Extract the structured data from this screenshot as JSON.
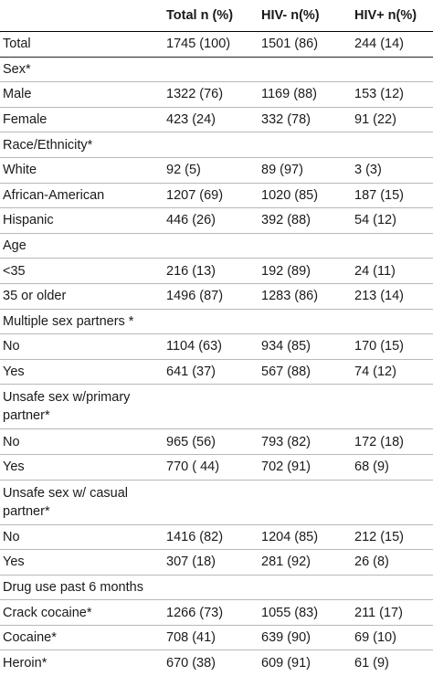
{
  "header": {
    "label": "",
    "total": "Total n (%)",
    "hiv_neg": "HIV- n(%)",
    "hiv_pos": "HIV+ n(%)"
  },
  "rows": [
    {
      "label": "Total",
      "total": "1745 (100)",
      "hiv_neg": "1501 (86)",
      "hiv_pos": "244 (14)"
    },
    {
      "label": "Sex*",
      "total": "",
      "hiv_neg": "",
      "hiv_pos": ""
    },
    {
      "label": "Male",
      "total": "1322 (76)",
      "hiv_neg": "1169 (88)",
      "hiv_pos": "153 (12)"
    },
    {
      "label": "Female",
      "total": "423 (24)",
      "hiv_neg": "332 (78)",
      "hiv_pos": "91 (22)"
    },
    {
      "label": "Race/Ethnicity*",
      "total": "",
      "hiv_neg": "",
      "hiv_pos": ""
    },
    {
      "label": "White",
      "total": "92 (5)",
      "hiv_neg": "89 (97)",
      "hiv_pos": "3 (3)"
    },
    {
      "label": "African-American",
      "total": "1207 (69)",
      "hiv_neg": "1020 (85)",
      "hiv_pos": "187 (15)"
    },
    {
      "label": "Hispanic",
      "total": "446 (26)",
      "hiv_neg": "392 (88)",
      "hiv_pos": "54 (12)"
    },
    {
      "label": "Age",
      "total": "",
      "hiv_neg": "",
      "hiv_pos": ""
    },
    {
      "label": "<35",
      "total": "216 (13)",
      "hiv_neg": "192 (89)",
      "hiv_pos": "24 (11)"
    },
    {
      "label": "35 or older",
      "total": "1496 (87)",
      "hiv_neg": "1283 (86)",
      "hiv_pos": "213 (14)"
    },
    {
      "label": "Multiple sex partners *",
      "total": "",
      "hiv_neg": "",
      "hiv_pos": ""
    },
    {
      "label": "No",
      "total": "1104 (63)",
      "hiv_neg": "934 (85)",
      "hiv_pos": "170 (15)"
    },
    {
      "label": "Yes",
      "total": "641 (37)",
      "hiv_neg": "567 (88)",
      "hiv_pos": "74 (12)"
    },
    {
      "label": "Unsafe sex w/primary partner*",
      "total": "",
      "hiv_neg": "",
      "hiv_pos": ""
    },
    {
      "label": "No",
      "total": "965 (56)",
      "hiv_neg": "793 (82)",
      "hiv_pos": "172 (18)"
    },
    {
      "label": "Yes",
      "total": "770 ( 44)",
      "hiv_neg": "702 (91)",
      "hiv_pos": "68 (9)"
    },
    {
      "label": "Unsafe sex w/ casual partner*",
      "total": "",
      "hiv_neg": "",
      "hiv_pos": ""
    },
    {
      "label": "No",
      "total": "1416 (82)",
      "hiv_neg": "1204 (85)",
      "hiv_pos": "212 (15)"
    },
    {
      "label": "Yes",
      "total": "307 (18)",
      "hiv_neg": "281 (92)",
      "hiv_pos": "26 (8)"
    },
    {
      "label": "Drug use past 6 months",
      "total": "",
      "hiv_neg": "",
      "hiv_pos": ""
    },
    {
      "label": "Crack cocaine*",
      "total": "1266 (73)",
      "hiv_neg": "1055 (83)",
      "hiv_pos": "211 (17)"
    },
    {
      "label": "Cocaine*",
      "total": "708 (41)",
      "hiv_neg": "639 (90)",
      "hiv_pos": "69 (10)"
    },
    {
      "label": "Heroin*",
      "total": "670 (38)",
      "hiv_neg": "609 (91)",
      "hiv_pos": "61 (9)"
    }
  ]
}
